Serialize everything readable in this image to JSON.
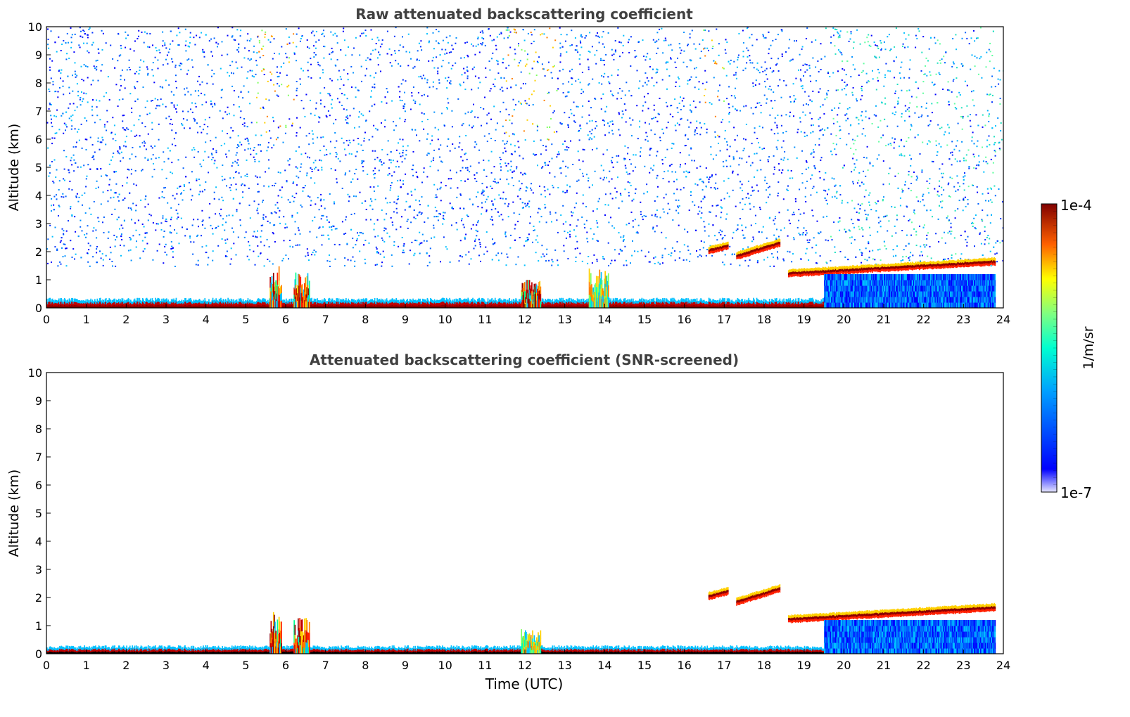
{
  "chart_data": [
    {
      "type": "heatmap",
      "title": "Raw attenuated backscattering coefficient",
      "xlabel": "",
      "ylabel": "Altitude (km)",
      "xlim": [
        0,
        24
      ],
      "ylim": [
        0,
        10
      ],
      "x_ticks": [
        "0",
        "1",
        "2",
        "3",
        "4",
        "5",
        "6",
        "7",
        "8",
        "9",
        "10",
        "11",
        "12",
        "13",
        "14",
        "15",
        "16",
        "17",
        "18",
        "19",
        "20",
        "21",
        "22",
        "23",
        "24"
      ],
      "y_ticks": [
        "0",
        "1",
        "2",
        "3",
        "4",
        "5",
        "6",
        "7",
        "8",
        "9",
        "10"
      ],
      "grid": false,
      "features": [
        {
          "kind": "boundary_layer",
          "time": [
            0,
            19.5
          ],
          "altitude_km": [
            0,
            0.3
          ],
          "level": "high"
        },
        {
          "kind": "cloud_layer",
          "time": [
            16.6,
            17.1
          ],
          "altitude_km": [
            2.0,
            2.3
          ],
          "level": "high"
        },
        {
          "kind": "cloud_layer",
          "time": [
            17.3,
            18.4
          ],
          "altitude_km": [
            1.7,
            2.5
          ],
          "level": "high"
        },
        {
          "kind": "cloud_layer",
          "time": [
            18.6,
            23.8
          ],
          "altitude_km": [
            1.1,
            1.8
          ],
          "level": "high"
        },
        {
          "kind": "rain_column",
          "time": [
            5.6,
            5.9
          ],
          "altitude_km": [
            0,
            1.5
          ],
          "level": "high"
        },
        {
          "kind": "rain_column",
          "time": [
            6.2,
            6.6
          ],
          "altitude_km": [
            0,
            1.3
          ],
          "level": "high"
        },
        {
          "kind": "rain_column",
          "time": [
            11.9,
            12.4
          ],
          "altitude_km": [
            0,
            1.0
          ],
          "level": "high"
        },
        {
          "kind": "rain_column",
          "time": [
            13.6,
            14.1
          ],
          "altitude_km": [
            0,
            1.4
          ],
          "level": "medium"
        },
        {
          "kind": "sub_cloud_region",
          "time": [
            19.5,
            23.8
          ],
          "altitude_km": [
            0,
            1.2
          ],
          "level": "low"
        },
        {
          "kind": "noisy_upper_signal",
          "time": [
            0,
            24
          ],
          "altitude_km": [
            1.5,
            10
          ],
          "level": "low"
        }
      ]
    },
    {
      "type": "heatmap",
      "title": "Attenuated backscattering coefficient (SNR-screened)",
      "xlabel": "Time (UTC)",
      "ylabel": "Altitude (km)",
      "xlim": [
        0,
        24
      ],
      "ylim": [
        0,
        10
      ],
      "x_ticks": [
        "0",
        "1",
        "2",
        "3",
        "4",
        "5",
        "6",
        "7",
        "8",
        "9",
        "10",
        "11",
        "12",
        "13",
        "14",
        "15",
        "16",
        "17",
        "18",
        "19",
        "20",
        "21",
        "22",
        "23",
        "24"
      ],
      "y_ticks": [
        "0",
        "1",
        "2",
        "3",
        "4",
        "5",
        "6",
        "7",
        "8",
        "9",
        "10"
      ],
      "grid": false,
      "features": [
        {
          "kind": "boundary_layer",
          "time": [
            0,
            19.5
          ],
          "altitude_km": [
            0,
            0.25
          ],
          "level": "high"
        },
        {
          "kind": "cloud_layer",
          "time": [
            16.6,
            17.1
          ],
          "altitude_km": [
            2.0,
            2.3
          ],
          "level": "high"
        },
        {
          "kind": "cloud_layer",
          "time": [
            17.3,
            18.4
          ],
          "altitude_km": [
            1.7,
            2.5
          ],
          "level": "high"
        },
        {
          "kind": "cloud_layer",
          "time": [
            18.6,
            23.8
          ],
          "altitude_km": [
            1.1,
            1.8
          ],
          "level": "high"
        },
        {
          "kind": "rain_column",
          "time": [
            5.6,
            5.9
          ],
          "altitude_km": [
            0,
            1.5
          ],
          "level": "high"
        },
        {
          "kind": "rain_column",
          "time": [
            6.2,
            6.6
          ],
          "altitude_km": [
            0,
            1.3
          ],
          "level": "high"
        },
        {
          "kind": "rain_column",
          "time": [
            11.9,
            12.4
          ],
          "altitude_km": [
            0,
            0.9
          ],
          "level": "medium"
        },
        {
          "kind": "sub_cloud_region",
          "time": [
            19.5,
            23.8
          ],
          "altitude_km": [
            0,
            1.2
          ],
          "level": "low"
        }
      ]
    }
  ],
  "colorbar": {
    "label": "1/m/sr",
    "max_label": "1e-4",
    "min_label": "1e-7",
    "colormap": "jet",
    "scale": "log"
  }
}
